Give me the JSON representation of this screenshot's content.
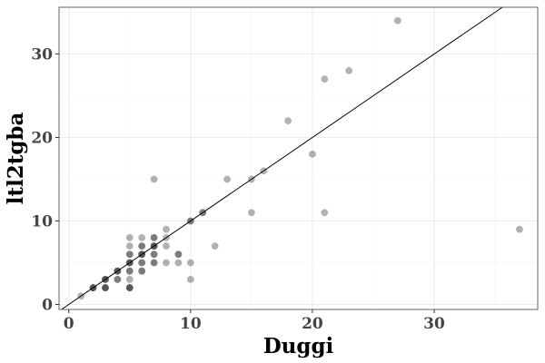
{
  "chart_data": {
    "type": "scatter",
    "title": "",
    "xlabel": "Duggi",
    "ylabel": "ltl2tgba",
    "xlim": [
      -0.8,
      38.5
    ],
    "ylim": [
      -0.6,
      35.6
    ],
    "xticks": [
      0,
      10,
      20,
      30
    ],
    "yticks": [
      0,
      10,
      20,
      30
    ],
    "grid": true,
    "reference_line": "y = x",
    "point_color": "#000000",
    "point_opacity": 0.3,
    "points": [
      {
        "x": 1,
        "y": 1
      },
      {
        "x": 2,
        "y": 2
      },
      {
        "x": 2,
        "y": 2
      },
      {
        "x": 2,
        "y": 2
      },
      {
        "x": 3,
        "y": 3
      },
      {
        "x": 3,
        "y": 3
      },
      {
        "x": 3,
        "y": 3
      },
      {
        "x": 3,
        "y": 2
      },
      {
        "x": 3,
        "y": 2
      },
      {
        "x": 3,
        "y": 2
      },
      {
        "x": 4,
        "y": 4
      },
      {
        "x": 4,
        "y": 4
      },
      {
        "x": 4,
        "y": 4
      },
      {
        "x": 4,
        "y": 3
      },
      {
        "x": 4,
        "y": 3
      },
      {
        "x": 5,
        "y": 5
      },
      {
        "x": 5,
        "y": 5
      },
      {
        "x": 5,
        "y": 5
      },
      {
        "x": 5,
        "y": 2
      },
      {
        "x": 5,
        "y": 2
      },
      {
        "x": 5,
        "y": 2
      },
      {
        "x": 5,
        "y": 3
      },
      {
        "x": 5,
        "y": 4
      },
      {
        "x": 5,
        "y": 4
      },
      {
        "x": 5,
        "y": 6
      },
      {
        "x": 5,
        "y": 6
      },
      {
        "x": 5,
        "y": 7
      },
      {
        "x": 5,
        "y": 8
      },
      {
        "x": 6,
        "y": 6
      },
      {
        "x": 6,
        "y": 6
      },
      {
        "x": 6,
        "y": 6
      },
      {
        "x": 6,
        "y": 4
      },
      {
        "x": 6,
        "y": 4
      },
      {
        "x": 6,
        "y": 5
      },
      {
        "x": 6,
        "y": 5
      },
      {
        "x": 6,
        "y": 7
      },
      {
        "x": 6,
        "y": 7
      },
      {
        "x": 6,
        "y": 8
      },
      {
        "x": 7,
        "y": 7
      },
      {
        "x": 7,
        "y": 7
      },
      {
        "x": 7,
        "y": 7
      },
      {
        "x": 7,
        "y": 5
      },
      {
        "x": 7,
        "y": 5
      },
      {
        "x": 7,
        "y": 6
      },
      {
        "x": 7,
        "y": 6
      },
      {
        "x": 7,
        "y": 8
      },
      {
        "x": 7,
        "y": 8
      },
      {
        "x": 7,
        "y": 15
      },
      {
        "x": 8,
        "y": 5
      },
      {
        "x": 8,
        "y": 7
      },
      {
        "x": 8,
        "y": 8
      },
      {
        "x": 8,
        "y": 9
      },
      {
        "x": 9,
        "y": 5
      },
      {
        "x": 9,
        "y": 6
      },
      {
        "x": 9,
        "y": 6
      },
      {
        "x": 10,
        "y": 10
      },
      {
        "x": 10,
        "y": 10
      },
      {
        "x": 10,
        "y": 5
      },
      {
        "x": 10,
        "y": 3
      },
      {
        "x": 11,
        "y": 11
      },
      {
        "x": 11,
        "y": 11
      },
      {
        "x": 12,
        "y": 7
      },
      {
        "x": 13,
        "y": 15
      },
      {
        "x": 15,
        "y": 15
      },
      {
        "x": 15,
        "y": 11
      },
      {
        "x": 16,
        "y": 16
      },
      {
        "x": 18,
        "y": 22
      },
      {
        "x": 20,
        "y": 18
      },
      {
        "x": 21,
        "y": 27
      },
      {
        "x": 21,
        "y": 11
      },
      {
        "x": 23,
        "y": 28
      },
      {
        "x": 27,
        "y": 34
      },
      {
        "x": 37,
        "y": 9
      }
    ]
  }
}
